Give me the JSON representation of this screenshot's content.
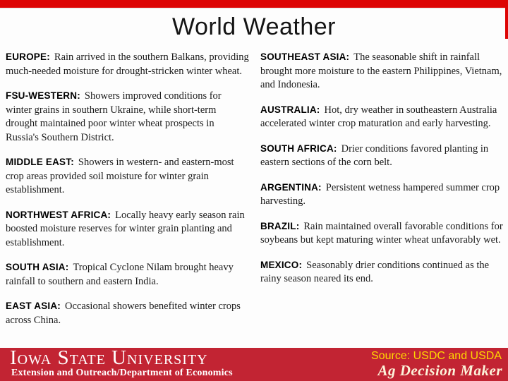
{
  "title": "World Weather",
  "columns": {
    "left": [
      {
        "name": "EUROPE:",
        "text": "Rain arrived in the southern Balkans, providing much-needed moisture for drought-stricken winter wheat."
      },
      {
        "name": "FSU-WESTERN:",
        "text": "Showers improved conditions for winter grains in southern Ukraine, while short-term drought maintained poor winter wheat prospects in Russia's Southern District."
      },
      {
        "name": "MIDDLE EAST:",
        "text": "Showers in western- and eastern-most crop areas provided soil moisture for winter grain establishment."
      },
      {
        "name": "NORTHWEST AFRICA:",
        "text": "Locally heavy early season rain boosted moisture reserves for winter grain planting and establishment."
      },
      {
        "name": "SOUTH ASIA:",
        "text": "Tropical Cyclone Nilam brought heavy rainfall to southern and eastern India."
      },
      {
        "name": "EAST ASIA:",
        "text": "Occasional showers benefited winter crops across China."
      }
    ],
    "right": [
      {
        "name": "SOUTHEAST ASIA:",
        "text": "The seasonable shift in rainfall brought more moisture to the eastern Philippines, Vietnam, and Indonesia."
      },
      {
        "name": "AUSTRALIA:",
        "text": "Hot, dry weather in southeastern Australia accelerated winter crop maturation and early harvesting."
      },
      {
        "name": "SOUTH AFRICA:",
        "text": "Drier conditions favored planting in eastern sections of the corn belt."
      },
      {
        "name": "ARGENTINA:",
        "text": "Persistent wetness hampered summer crop harvesting."
      },
      {
        "name": "BRAZIL:",
        "text": "Rain maintained overall favorable conditions for soybeans but kept maturing winter wheat unfavorably wet."
      },
      {
        "name": "MEXICO:",
        "text": "Seasonably drier conditions continued as the rainy season neared its end."
      }
    ]
  },
  "footer": {
    "university": "Iowa State University",
    "department": "Extension and Outreach/Department of Economics",
    "source": "Source: USDC and USDA",
    "brand": "Ag Decision Maker"
  },
  "colors": {
    "top_bar_red": "#dd0404",
    "footer_red": "#c22433",
    "source_text_yellow": "#ffd800",
    "brand_text_cream": "#fcf3da",
    "title_text": "#141414",
    "body_text": "#1b1b1b"
  }
}
